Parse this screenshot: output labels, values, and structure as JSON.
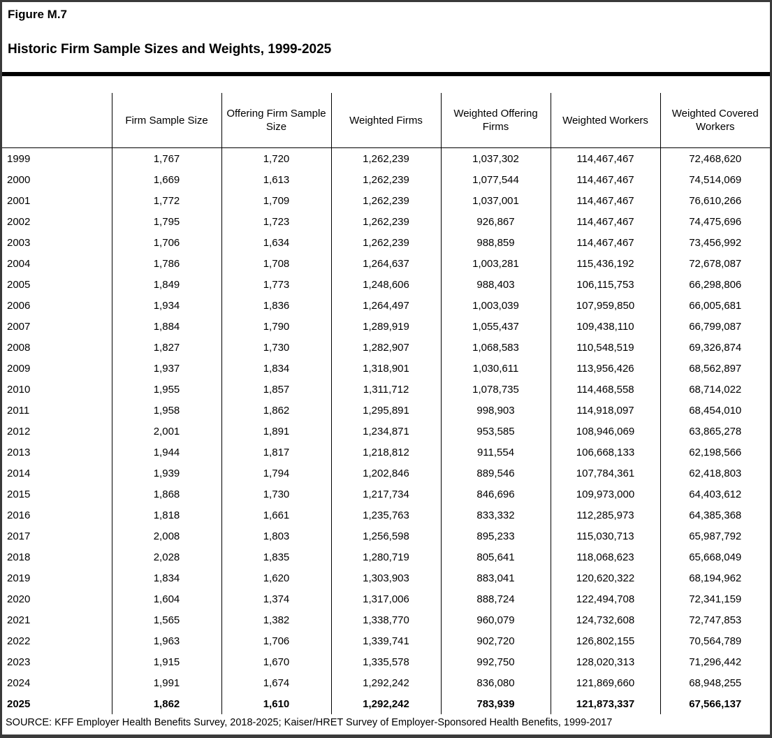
{
  "figure": {
    "label": "Figure M.7",
    "title": "Historic Firm Sample Sizes and Weights, 1999-2025"
  },
  "table": {
    "columns": [
      "",
      "Firm Sample Size",
      "Offering Firm Sample Size",
      "Weighted Firms",
      "Weighted Offering Firms",
      "Weighted Workers",
      "Weighted Covered Workers"
    ],
    "rows": [
      {
        "year": "1999",
        "cells": [
          "1,767",
          "1,720",
          "1,262,239",
          "1,037,302",
          "114,467,467",
          "72,468,620"
        ],
        "bold": false
      },
      {
        "year": "2000",
        "cells": [
          "1,669",
          "1,613",
          "1,262,239",
          "1,077,544",
          "114,467,467",
          "74,514,069"
        ],
        "bold": false
      },
      {
        "year": "2001",
        "cells": [
          "1,772",
          "1,709",
          "1,262,239",
          "1,037,001",
          "114,467,467",
          "76,610,266"
        ],
        "bold": false
      },
      {
        "year": "2002",
        "cells": [
          "1,795",
          "1,723",
          "1,262,239",
          "926,867",
          "114,467,467",
          "74,475,696"
        ],
        "bold": false
      },
      {
        "year": "2003",
        "cells": [
          "1,706",
          "1,634",
          "1,262,239",
          "988,859",
          "114,467,467",
          "73,456,992"
        ],
        "bold": false
      },
      {
        "year": "2004",
        "cells": [
          "1,786",
          "1,708",
          "1,264,637",
          "1,003,281",
          "115,436,192",
          "72,678,087"
        ],
        "bold": false
      },
      {
        "year": "2005",
        "cells": [
          "1,849",
          "1,773",
          "1,248,606",
          "988,403",
          "106,115,753",
          "66,298,806"
        ],
        "bold": false
      },
      {
        "year": "2006",
        "cells": [
          "1,934",
          "1,836",
          "1,264,497",
          "1,003,039",
          "107,959,850",
          "66,005,681"
        ],
        "bold": false
      },
      {
        "year": "2007",
        "cells": [
          "1,884",
          "1,790",
          "1,289,919",
          "1,055,437",
          "109,438,110",
          "66,799,087"
        ],
        "bold": false
      },
      {
        "year": "2008",
        "cells": [
          "1,827",
          "1,730",
          "1,282,907",
          "1,068,583",
          "110,548,519",
          "69,326,874"
        ],
        "bold": false
      },
      {
        "year": "2009",
        "cells": [
          "1,937",
          "1,834",
          "1,318,901",
          "1,030,611",
          "113,956,426",
          "68,562,897"
        ],
        "bold": false
      },
      {
        "year": "2010",
        "cells": [
          "1,955",
          "1,857",
          "1,311,712",
          "1,078,735",
          "114,468,558",
          "68,714,022"
        ],
        "bold": false
      },
      {
        "year": "2011",
        "cells": [
          "1,958",
          "1,862",
          "1,295,891",
          "998,903",
          "114,918,097",
          "68,454,010"
        ],
        "bold": false
      },
      {
        "year": "2012",
        "cells": [
          "2,001",
          "1,891",
          "1,234,871",
          "953,585",
          "108,946,069",
          "63,865,278"
        ],
        "bold": false
      },
      {
        "year": "2013",
        "cells": [
          "1,944",
          "1,817",
          "1,218,812",
          "911,554",
          "106,668,133",
          "62,198,566"
        ],
        "bold": false
      },
      {
        "year": "2014",
        "cells": [
          "1,939",
          "1,794",
          "1,202,846",
          "889,546",
          "107,784,361",
          "62,418,803"
        ],
        "bold": false
      },
      {
        "year": "2015",
        "cells": [
          "1,868",
          "1,730",
          "1,217,734",
          "846,696",
          "109,973,000",
          "64,403,612"
        ],
        "bold": false
      },
      {
        "year": "2016",
        "cells": [
          "1,818",
          "1,661",
          "1,235,763",
          "833,332",
          "112,285,973",
          "64,385,368"
        ],
        "bold": false
      },
      {
        "year": "2017",
        "cells": [
          "2,008",
          "1,803",
          "1,256,598",
          "895,233",
          "115,030,713",
          "65,987,792"
        ],
        "bold": false
      },
      {
        "year": "2018",
        "cells": [
          "2,028",
          "1,835",
          "1,280,719",
          "805,641",
          "118,068,623",
          "65,668,049"
        ],
        "bold": false
      },
      {
        "year": "2019",
        "cells": [
          "1,834",
          "1,620",
          "1,303,903",
          "883,041",
          "120,620,322",
          "68,194,962"
        ],
        "bold": false
      },
      {
        "year": "2020",
        "cells": [
          "1,604",
          "1,374",
          "1,317,006",
          "888,724",
          "122,494,708",
          "72,341,159"
        ],
        "bold": false
      },
      {
        "year": "2021",
        "cells": [
          "1,565",
          "1,382",
          "1,338,770",
          "960,079",
          "124,732,608",
          "72,747,853"
        ],
        "bold": false
      },
      {
        "year": "2022",
        "cells": [
          "1,963",
          "1,706",
          "1,339,741",
          "902,720",
          "126,802,155",
          "70,564,789"
        ],
        "bold": false
      },
      {
        "year": "2023",
        "cells": [
          "1,915",
          "1,670",
          "1,335,578",
          "992,750",
          "128,020,313",
          "71,296,442"
        ],
        "bold": false
      },
      {
        "year": "2024",
        "cells": [
          "1,991",
          "1,674",
          "1,292,242",
          "836,080",
          "121,869,660",
          "68,948,255"
        ],
        "bold": false
      },
      {
        "year": "2025",
        "cells": [
          "1,862",
          "1,610",
          "1,292,242",
          "783,939",
          "121,873,337",
          "67,566,137"
        ],
        "bold": true
      }
    ]
  },
  "source": "SOURCE: KFF Employer Health Benefits Survey, 2018-2025; Kaiser/HRET Survey of Employer-Sponsored Health Benefits, 1999-2017",
  "colors": {
    "text": "#000000",
    "rule": "#000000",
    "page_border": "#3a3a3a",
    "background": "#ffffff"
  }
}
